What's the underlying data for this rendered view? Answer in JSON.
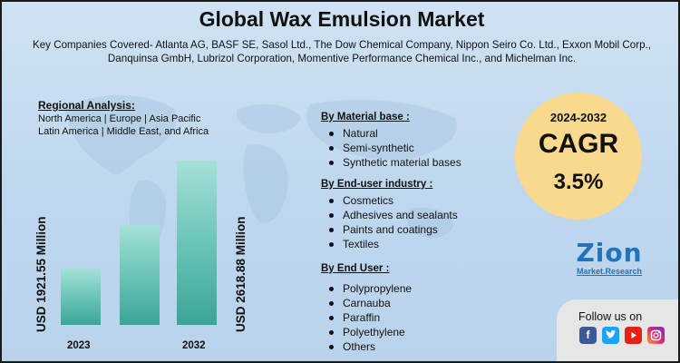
{
  "title": "Global Wax Emulsion Market",
  "subtitle": "Key Companies Covered- Atlanta AG, BASF SE, Sasol Ltd., The Dow Chemical Company, Nippon Seiro Co. Ltd., Exxon Mobil Corp., Danquinsa GmbH, Lubrizol Corporation, Momentive Performance Chemical Inc., and Michelman Inc.",
  "regional": {
    "heading": "Regional Analysis:",
    "line1": "North America | Europe | Asia Pacific",
    "line2": "Latin America | Middle East, and Africa"
  },
  "chart": {
    "label_2023": "USD 1921.55 Million",
    "label_2032": "USD 2618.88 Million",
    "year_start": "2023",
    "year_end": "2032"
  },
  "chart_data": {
    "type": "bar",
    "categories": [
      "2023",
      "",
      "2032"
    ],
    "values": [
      1921.55,
      2237,
      2618.88
    ],
    "title": "",
    "xlabel": "",
    "ylabel": ""
  },
  "segments": {
    "material": {
      "heading": "By Material base :",
      "items": [
        "Natural",
        "Semi-synthetic",
        "Synthetic material bases"
      ]
    },
    "industry": {
      "heading": "By End-user industry :",
      "items": [
        "Cosmetics",
        "Adhesives and sealants",
        "Paints and coatings",
        "Textiles"
      ]
    },
    "enduser": {
      "heading": "By End User :",
      "items": [
        "Polypropylene",
        "Carnauba",
        "Paraffin",
        "Polyethylene",
        "Others"
      ]
    }
  },
  "cagr": {
    "period": "2024-2032",
    "label": "CAGR",
    "value": "3.5%"
  },
  "logo": {
    "name": "Zion",
    "sub": "Market.Research"
  },
  "social": {
    "follow": "Follow us on",
    "icons": [
      "facebook-icon",
      "twitter-icon",
      "youtube-icon",
      "instagram-icon"
    ]
  },
  "colors": {
    "bar_top": "#a5e0d8",
    "bar_bottom": "#3aa597",
    "cagr_circle": "#f8d98e",
    "brand_blue": "#2273b9"
  }
}
